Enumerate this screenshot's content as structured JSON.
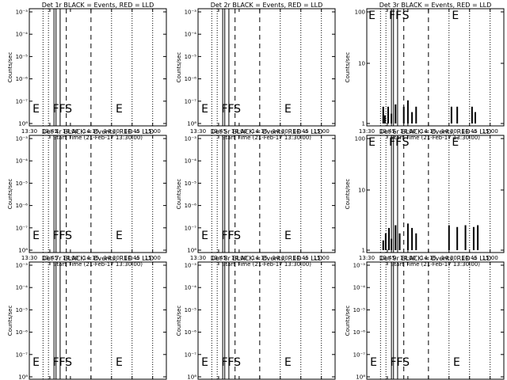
{
  "panels": [
    {
      "title": "Det 1r BLACK = Events, RED = LLD",
      "ylabel": "Counts/sec",
      "xlabel": "Start Time (21-Feb-17 13:30:00)",
      "scale": "micro",
      "yticks": [
        "10⁻³",
        "10⁻⁴",
        "10⁻⁵",
        "10⁻⁶",
        "10⁻⁷",
        "10⁸"
      ],
      "marks": [
        "E",
        "FF",
        "S",
        "E"
      ],
      "events": []
    },
    {
      "title": "Det 2r BLACK = Events, RED = LLD",
      "ylabel": "Counts/sec",
      "xlabel": "Start Time (21-Feb-17 13:30:00)",
      "scale": "micro",
      "yticks": [
        "10⁻³",
        "10⁻⁴",
        "10⁻⁵",
        "10⁻⁶",
        "10⁻⁷",
        "10⁸"
      ],
      "marks": [
        "E",
        "FF",
        "S",
        "E"
      ],
      "events": []
    },
    {
      "title": "Det 3r BLACK = Events, RED = LLD",
      "ylabel": "Counts/sec",
      "xlabel": "Start Time (21-Feb-17 13:30:00)",
      "scale": "count",
      "yticks": [
        "100",
        "10",
        "1"
      ],
      "marks": [
        "E",
        "FF",
        "S",
        "E"
      ],
      "events": [
        {
          "t": 13.7,
          "v": 2
        },
        {
          "t": 13.72,
          "v": 1.4
        },
        {
          "t": 13.76,
          "v": 2
        },
        {
          "t": 13.8,
          "v": 1.5
        },
        {
          "t": 13.85,
          "v": 2.2
        },
        {
          "t": 13.95,
          "v": 2
        },
        {
          "t": 14.0,
          "v": 2.6
        },
        {
          "t": 14.05,
          "v": 1.6
        },
        {
          "t": 14.1,
          "v": 2
        },
        {
          "t": 14.53,
          "v": 2
        },
        {
          "t": 14.6,
          "v": 2
        },
        {
          "t": 14.78,
          "v": 2
        },
        {
          "t": 14.82,
          "v": 1.6
        }
      ]
    },
    {
      "title": "Det 4r BLACK = Events, RED = LLD",
      "ylabel": "Counts/sec",
      "xlabel": "Start Time (21-Feb-17 13:30:00)",
      "scale": "micro",
      "yticks": [
        "10⁻³",
        "10⁻⁴",
        "10⁻⁵",
        "10⁻⁶",
        "10⁻⁷",
        "10⁸"
      ],
      "marks": [
        "E",
        "FF",
        "S",
        "E"
      ],
      "events": []
    },
    {
      "title": "Det 5r BLACK = Events, RED = LLD",
      "ylabel": "Counts/sec",
      "xlabel": "Start Time (21-Feb-17 13:30:00)",
      "scale": "micro",
      "yticks": [
        "10⁻³",
        "10⁻⁴",
        "10⁻⁵",
        "10⁻⁶",
        "10⁻⁷",
        "10⁸"
      ],
      "marks": [
        "E",
        "FF",
        "S",
        "E"
      ],
      "events": []
    },
    {
      "title": "Det 6r BLACK = Events, RED = LLD",
      "ylabel": "Counts/sec",
      "xlabel": "Start Time (21-Feb-17 13:30:00)",
      "scale": "count",
      "yticks": [
        "100",
        "10",
        "1"
      ],
      "marks": [
        "E",
        "FF",
        "S",
        "E"
      ],
      "events": [
        {
          "t": 13.7,
          "v": 1.5
        },
        {
          "t": 13.73,
          "v": 2
        },
        {
          "t": 13.77,
          "v": 2.5
        },
        {
          "t": 13.8,
          "v": 1.6
        },
        {
          "t": 13.85,
          "v": 2.8
        },
        {
          "t": 13.9,
          "v": 2
        },
        {
          "t": 14.0,
          "v": 3
        },
        {
          "t": 14.05,
          "v": 2.5
        },
        {
          "t": 14.1,
          "v": 2
        },
        {
          "t": 14.5,
          "v": 2.8
        },
        {
          "t": 14.6,
          "v": 2.6
        },
        {
          "t": 14.7,
          "v": 2.8
        },
        {
          "t": 14.8,
          "v": 2.6
        },
        {
          "t": 14.85,
          "v": 2.8
        }
      ]
    },
    {
      "title": "Det 7r BLACK = Events, RED = LLD",
      "ylabel": "Counts/sec",
      "xlabel": "Start Time (21-Feb-17 13:30:00)",
      "scale": "micro",
      "yticks": [
        "10⁻³",
        "10⁻⁴",
        "10⁻⁵",
        "10⁻⁶",
        "10⁻⁷",
        "10⁸"
      ],
      "marks": [
        "E",
        "FF",
        "S",
        "E"
      ],
      "events": []
    },
    {
      "title": "Det 8r BLACK = Events, RED = LLD",
      "ylabel": "Counts/sec",
      "xlabel": "Start Time (21-Feb-17 13:30:00)",
      "scale": "micro",
      "yticks": [
        "10⁻³",
        "10⁻⁴",
        "10⁻⁵",
        "10⁻⁶",
        "10⁻⁷",
        "10⁸"
      ],
      "marks": [
        "E",
        "FF",
        "S",
        "E"
      ],
      "events": []
    },
    {
      "title": "Det 9r BLACK = Events, RED = LLD",
      "ylabel": "Counts/sec",
      "xlabel": "Start Time (21-Feb-17 13:30:00)",
      "scale": "micro",
      "yticks": [
        "10⁻³",
        "10⁻⁴",
        "10⁻⁵",
        "10⁻⁶",
        "10⁻⁷",
        "10⁸"
      ],
      "marks": [
        "E",
        "FF",
        "S",
        "E"
      ],
      "events": []
    }
  ],
  "xticks": [
    "13:30",
    "13:45",
    "14:00",
    "14:15",
    "14:30",
    "14:45",
    "15:00"
  ],
  "chart_data": [
    {
      "type": "line",
      "title": "Det 1r BLACK = Events, RED = LLD",
      "xlabel": "Start Time (21-Feb-17 13:30:00)",
      "ylabel": "Counts/sec",
      "x_range": [
        "13:30",
        "15:10"
      ],
      "log_y": true,
      "series": []
    },
    {
      "type": "line",
      "title": "Det 2r BLACK = Events, RED = LLD",
      "xlabel": "Start Time (21-Feb-17 13:30:00)",
      "ylabel": "Counts/sec",
      "x_range": [
        "13:30",
        "15:10"
      ],
      "log_y": true,
      "series": []
    },
    {
      "type": "line",
      "title": "Det 3r BLACK = Events, RED = LLD",
      "xlabel": "Start Time (21-Feb-17 13:30:00)",
      "ylabel": "Counts/sec",
      "x_range": [
        "13:30",
        "15:10"
      ],
      "ylim": [
        1,
        100
      ],
      "log_y": true,
      "series": [
        {
          "values": [
            2,
            1.4,
            2,
            1.5,
            2.2,
            2,
            2.6,
            1.6,
            2,
            2,
            2,
            2,
            1.6
          ]
        }
      ]
    },
    {
      "type": "line",
      "title": "Det 4r BLACK = Events, RED = LLD",
      "xlabel": "Start Time (21-Feb-17 13:30:00)",
      "ylabel": "Counts/sec",
      "x_range": [
        "13:30",
        "15:10"
      ],
      "log_y": true,
      "series": []
    },
    {
      "type": "line",
      "title": "Det 5r BLACK = Events, RED = LLD",
      "xlabel": "Start Time (21-Feb-17 13:30:00)",
      "ylabel": "Counts/sec",
      "x_range": [
        "13:30",
        "15:10"
      ],
      "log_y": true,
      "series": []
    },
    {
      "type": "line",
      "title": "Det 6r BLACK = Events, RED = LLD",
      "xlabel": "Start Time (21-Feb-17 13:30:00)",
      "ylabel": "Counts/sec",
      "x_range": [
        "13:30",
        "15:10"
      ],
      "ylim": [
        1,
        100
      ],
      "log_y": true,
      "series": [
        {
          "values": [
            1.5,
            2,
            2.5,
            1.6,
            2.8,
            2,
            3,
            2.5,
            2,
            2.8,
            2.6,
            2.8,
            2.6,
            2.8
          ]
        }
      ]
    },
    {
      "type": "line",
      "title": "Det 7r BLACK = Events, RED = LLD",
      "xlabel": "Start Time (21-Feb-17 13:30:00)",
      "ylabel": "Counts/sec",
      "x_range": [
        "13:30",
        "15:10"
      ],
      "log_y": true,
      "series": []
    },
    {
      "type": "line",
      "title": "Det 8r BLACK = Events, RED = LLD",
      "xlabel": "Start Time (21-Feb-17 13:30:00)",
      "ylabel": "Counts/sec",
      "x_range": [
        "13:30",
        "15:10"
      ],
      "log_y": true,
      "series": []
    },
    {
      "type": "line",
      "title": "Det 9r BLACK = Events, RED = LLD",
      "xlabel": "Start Time (21-Feb-17 13:30:00)",
      "ylabel": "Counts/sec",
      "x_range": [
        "13:30",
        "15:10"
      ],
      "log_y": true,
      "series": []
    }
  ]
}
